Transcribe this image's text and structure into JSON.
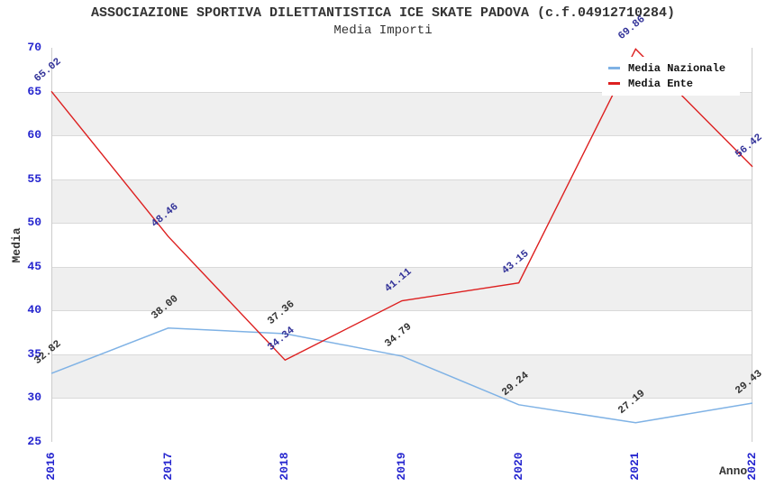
{
  "header": {
    "title": "ASSOCIAZIONE SPORTIVA DILETTANTISTICA ICE SKATE PADOVA (c.f.04912710284)",
    "subtitle": "Media Importi"
  },
  "legend": {
    "position": "top-right",
    "items": [
      {
        "label": "Media Nazionale",
        "color": "#7fb2e5"
      },
      {
        "label": "Media Ente",
        "color": "#dd2020"
      }
    ]
  },
  "chart_data": {
    "type": "line",
    "title": "ASSOCIAZIONE SPORTIVA DILETTANTISTICA ICE SKATE PADOVA (c.f.04912710284)",
    "subtitle": "Media Importi",
    "xlabel": "Anno",
    "ylabel": "Media",
    "x": [
      "2016",
      "2017",
      "2018",
      "2019",
      "2020",
      "2021",
      "2022"
    ],
    "series": [
      {
        "name": "Media Nazionale",
        "color": "#7fb2e5",
        "label_color": "#333333",
        "stroke_width": 1.5,
        "values": [
          32.82,
          38.0,
          37.36,
          34.79,
          29.24,
          27.19,
          29.43
        ]
      },
      {
        "name": "Media Ente",
        "color": "#dd2020",
        "label_color": "#333399",
        "stroke_width": 1.4,
        "values": [
          65.02,
          48.46,
          34.34,
          41.11,
          43.15,
          69.86,
          56.42
        ]
      }
    ],
    "ylim": [
      25,
      70
    ],
    "ytick_step": 5,
    "grid": "horizontal gridlines with alternating shaded bands",
    "legend_position": "top-right",
    "colors": {
      "tick_label": "#2626cf",
      "band_white": "#ffffff",
      "band_alt": "#efefef",
      "grid_line": "#d9d9d9",
      "plot_border": "#cccccc",
      "title_text": "#333333"
    }
  }
}
